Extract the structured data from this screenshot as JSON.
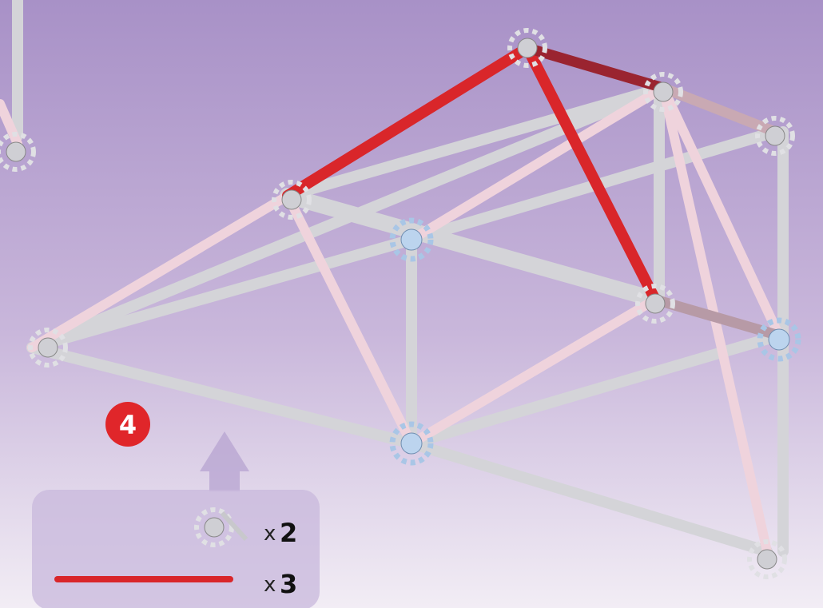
{
  "step": "4",
  "parts": [
    {
      "multiplier": "x",
      "quantity": "2"
    },
    {
      "multiplier": "x",
      "quantity": "3"
    }
  ]
}
